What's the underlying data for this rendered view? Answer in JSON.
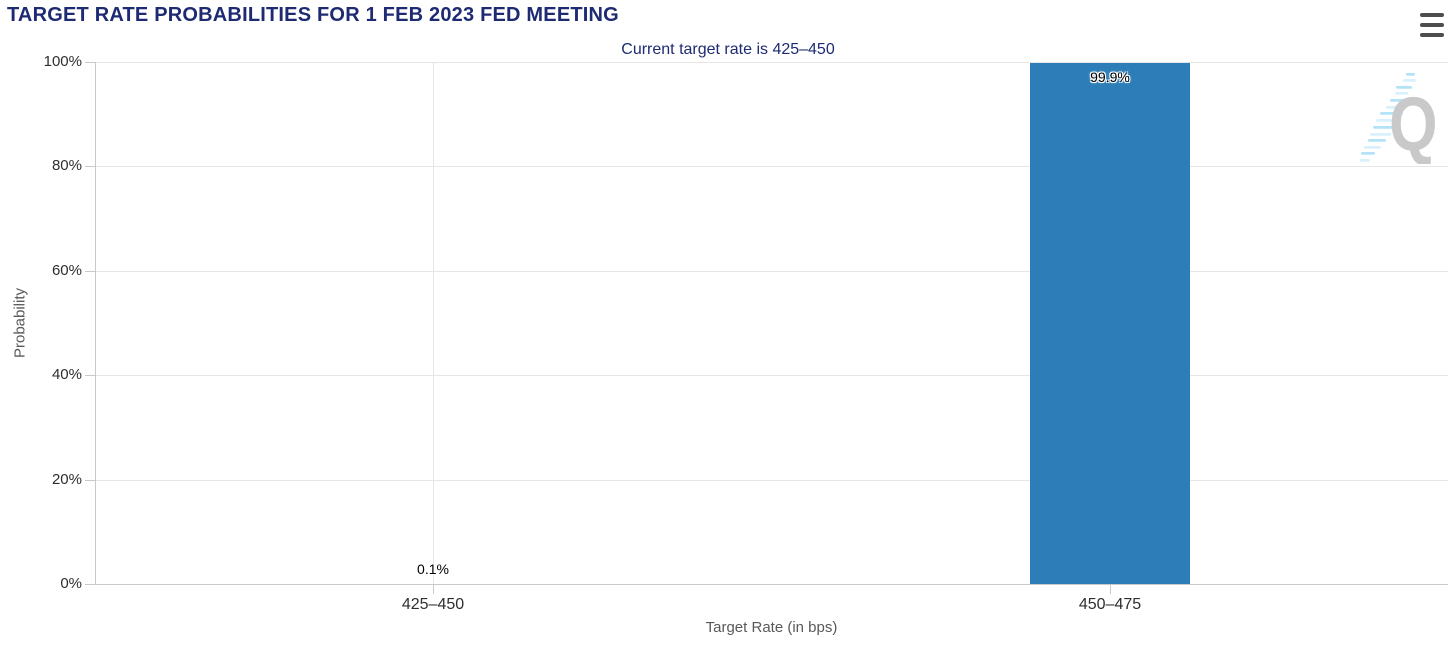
{
  "header": {
    "title": "TARGET RATE PROBABILITIES FOR 1 FEB 2023 FED MEETING",
    "menu_icon": "hamburger-icon"
  },
  "chart_data": {
    "type": "bar",
    "title": "TARGET RATE PROBABILITIES FOR 1 FEB 2023 FED MEETING",
    "subtitle": "Current target rate is 425–450",
    "categories": [
      "425–450",
      "450–475"
    ],
    "values": [
      0.1,
      99.9
    ],
    "value_labels": [
      "0.1%",
      "99.9%"
    ],
    "xlabel": "Target Rate (in bps)",
    "ylabel": "Probability",
    "ylim": [
      0,
      100
    ],
    "yticks": [
      0,
      20,
      40,
      60,
      80,
      100
    ],
    "ytick_labels": [
      "0%",
      "20%",
      "40%",
      "60%",
      "80%",
      "100%"
    ],
    "grid": true,
    "legend": false,
    "bar_color": "#2d7eb8"
  },
  "watermark": {
    "name": "quandl-logo",
    "letter": "Q"
  },
  "colors": {
    "title": "#1e2a72",
    "tick_label": "#2e2e2e",
    "axis_title": "#595959",
    "grid": "#e6e6e6",
    "axis_line": "#c9c9c9",
    "bar": "#2d7eb8",
    "menu_icon": "#4d4d4d",
    "watermark_gray": "#c9c9c9",
    "watermark_blue": "#a8dff6"
  }
}
